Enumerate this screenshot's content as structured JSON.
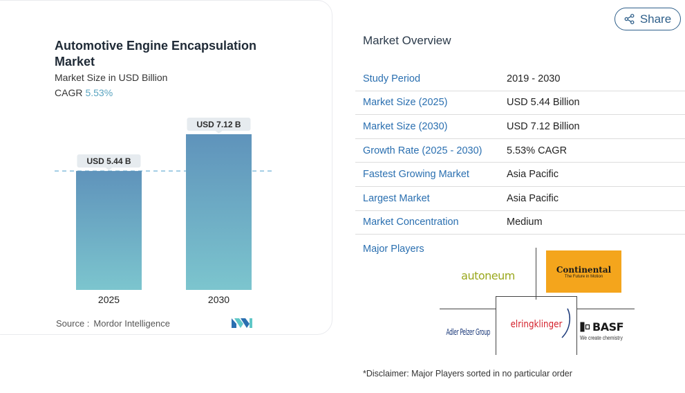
{
  "chart": {
    "title": "Automotive Engine Encapsulation Market",
    "subtitle": "Market Size in USD Billion",
    "cagr_label": "CAGR",
    "cagr_value": "5.53%",
    "source_label": "Source :",
    "source_value": "Mordor Intelligence"
  },
  "chart_data": {
    "type": "bar",
    "categories": [
      "2025",
      "2030"
    ],
    "values": [
      5.44,
      7.12
    ],
    "data_labels": [
      "USD 5.44 B",
      "USD 7.12 B"
    ],
    "title": "Automotive Engine Encapsulation Market",
    "subtitle": "Market Size in USD Billion",
    "ylim": [
      0,
      7.12
    ],
    "grid": false,
    "reference_line_value": 5.44,
    "colors": {
      "bar_top": "#5f93bb",
      "bar_bottom": "#7cc5ce",
      "ref_line": "#6fb0d6",
      "label_bg": "#e6ebef"
    }
  },
  "share": {
    "label": "Share"
  },
  "overview": {
    "title": "Market Overview",
    "rows": [
      {
        "label": "Study Period",
        "value": "2019 - 2030"
      },
      {
        "label": "Market Size (2025)",
        "value": "USD 5.44 Billion"
      },
      {
        "label": "Market Size (2030)",
        "value": "USD 7.12 Billion"
      },
      {
        "label": "Growth Rate (2025 - 2030)",
        "value": "5.53% CAGR"
      },
      {
        "label": "Fastest Growing Market",
        "value": "Asia Pacific"
      },
      {
        "label": "Largest Market",
        "value": "Asia Pacific"
      },
      {
        "label": "Market Concentration",
        "value": "Medium"
      }
    ]
  },
  "players": {
    "label": "Major Players",
    "logos": {
      "autoneum": "autoneum",
      "continental": "Continental",
      "continental_tagline": "The Future in Motion",
      "adler": "Adler Pelzer Group",
      "elring": "elringklinger",
      "basf": "BASF",
      "basf_tagline": "We create chemistry"
    }
  },
  "disclaimer": "*Disclaimer: Major Players sorted in no particular order"
}
